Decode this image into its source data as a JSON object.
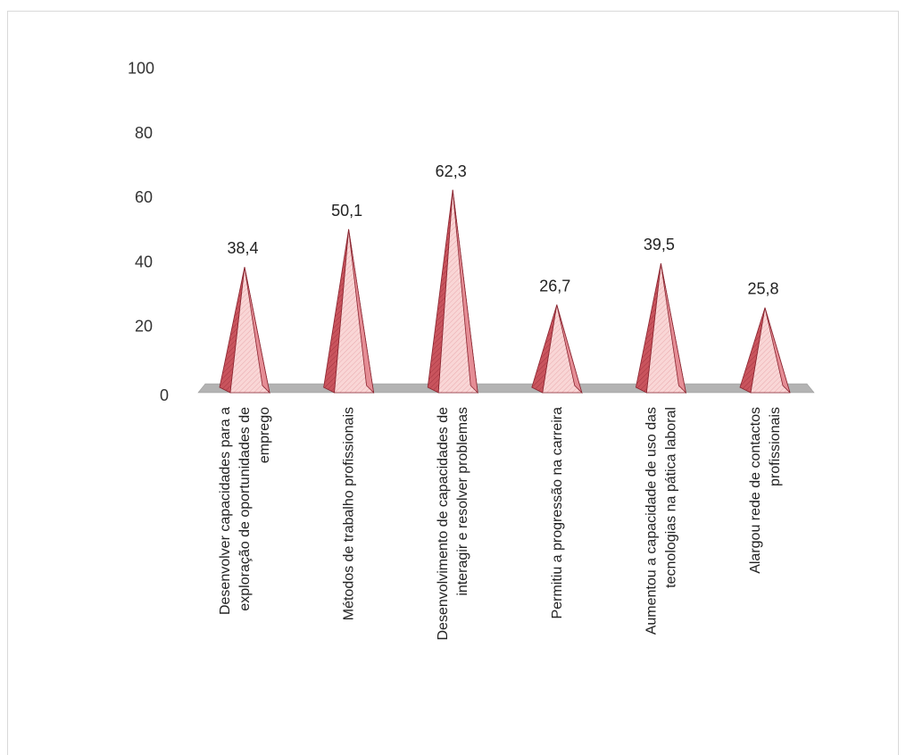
{
  "chart_data": {
    "type": "bar",
    "style": "3d-pyramid",
    "categories": [
      [
        "Desenvolver capacidades para a",
        "exploração de oportunidades de",
        "emprego"
      ],
      [
        "Métodos de trabalho profissionais"
      ],
      [
        "Desenvolvimento de capacidades de",
        "interagir e resolver problemas"
      ],
      [
        "Permitiu a progressão na carreira"
      ],
      [
        "Aumentou a capacidade de uso das",
        "tecnologias na pática laboral"
      ],
      [
        "Alargou rede de contactos",
        "profissionais"
      ]
    ],
    "values": [
      38.4,
      50.1,
      62.3,
      26.7,
      39.5,
      25.8
    ],
    "data_labels": [
      "38,4",
      "50,1",
      "62,3",
      "26,7",
      "39,5",
      "25,8"
    ],
    "y_ticks": [
      "0",
      "20",
      "40",
      "60",
      "80",
      "100"
    ],
    "ylim": [
      0,
      100
    ],
    "title": "",
    "xlabel": "",
    "ylabel": "",
    "legend": "none",
    "grid": false,
    "colors": {
      "fill_front": "#f8cfcf",
      "fill_side": "#b03a44",
      "edge": "#8a2530",
      "floor": "#b3b3b3",
      "frame": "#d9d9d9"
    }
  }
}
